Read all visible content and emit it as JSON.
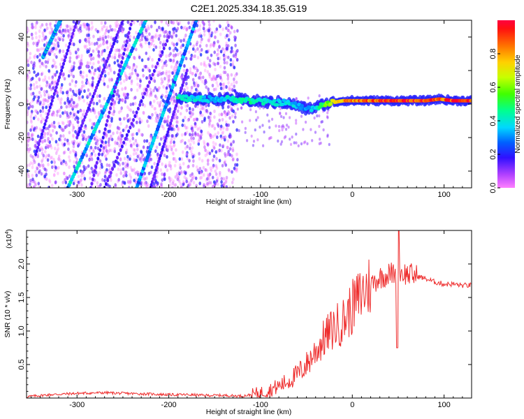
{
  "chart_data": [
    {
      "type": "heatmap",
      "title": "C2E1.2025.334.18.35.G19",
      "xlabel": "Height of straight line (km)",
      "ylabel": "Frequency (Hz)",
      "xlim": [
        -355,
        130
      ],
      "ylim": [
        -50,
        50
      ],
      "x_ticks": [
        -300,
        -200,
        -100,
        0,
        100
      ],
      "x_tick_labels": [
        "-300",
        "-200",
        "-100",
        "0",
        "100"
      ],
      "y_ticks": [
        -40,
        -20,
        0,
        20,
        40
      ],
      "y_tick_labels": [
        "-40",
        "-20",
        "0",
        "20",
        "40"
      ],
      "colorbar": {
        "label": "Normalized spectral amplitude",
        "range": [
          0,
          1
        ],
        "ticks": [
          0.0,
          0.2,
          0.4,
          0.6,
          0.8
        ],
        "tick_labels": [
          "0.0",
          "0.2",
          "0.4",
          "0.6",
          "0.8"
        ]
      },
      "noise_region_x": [
        -355,
        -125
      ],
      "carrier_trace": {
        "x": [
          -190,
          -175,
          -150,
          -130,
          -110,
          -90,
          -75,
          -60,
          -50,
          -40,
          -30,
          -20,
          -10,
          0,
          20,
          40,
          60,
          80,
          95,
          110,
          130
        ],
        "freq": [
          4,
          3,
          3,
          3,
          2,
          1,
          1,
          -1,
          -3,
          -2,
          0,
          1,
          2,
          2,
          2,
          2,
          2,
          2,
          3,
          2,
          2
        ],
        "amplitude": [
          0.45,
          0.4,
          0.35,
          0.4,
          0.45,
          0.4,
          0.4,
          0.35,
          0.3,
          0.4,
          0.55,
          0.7,
          0.8,
          0.85,
          0.9,
          0.92,
          0.95,
          0.95,
          0.9,
          0.95,
          0.95
        ]
      },
      "diagonal_streaks": [
        {
          "x_start": -310,
          "freq_start": -50,
          "x_end": -225,
          "freq_end": 50,
          "amplitude": 0.4
        },
        {
          "x_start": -235,
          "freq_start": -50,
          "x_end": -170,
          "freq_end": 50,
          "amplitude": 0.35
        },
        {
          "x_start": -337,
          "freq_start": 28,
          "x_end": -318,
          "freq_end": 50,
          "amplitude": 0.4
        }
      ]
    },
    {
      "type": "line",
      "xlabel": "Height of straight line (km)",
      "ylabel": "SNR (10 * v/v)",
      "scale_label": "(x10",
      "scale_exponent": "4",
      "xlim": [
        -355,
        130
      ],
      "ylim": [
        0,
        2.5
      ],
      "x_ticks": [
        -300,
        -200,
        -100,
        0,
        100
      ],
      "x_tick_labels": [
        "-300",
        "-200",
        "-100",
        "0",
        "100"
      ],
      "y_ticks": [
        0.5,
        1.0,
        1.5,
        2.0
      ],
      "y_tick_labels": [
        "0.5",
        "1.0",
        "1.5",
        "2.0"
      ],
      "series": [
        {
          "name": "SNR",
          "color": "#ee2c2c",
          "x": [
            -355,
            -330,
            -300,
            -270,
            -250,
            -220,
            -200,
            -180,
            -160,
            -140,
            -120,
            -110,
            -100,
            -90,
            -80,
            -70,
            -60,
            -50,
            -40,
            -30,
            -20,
            -10,
            0,
            10,
            20,
            30,
            40,
            50,
            60,
            70,
            80,
            90,
            100,
            110,
            120,
            130
          ],
          "y": [
            0.02,
            0.05,
            0.07,
            0.08,
            0.07,
            0.06,
            0.05,
            0.05,
            0.04,
            0.04,
            0.03,
            0.05,
            0.08,
            0.12,
            0.18,
            0.25,
            0.35,
            0.5,
            0.7,
            0.9,
            1.05,
            1.15,
            1.35,
            1.55,
            1.7,
            1.8,
            1.85,
            1.88,
            1.85,
            1.82,
            1.78,
            1.73,
            1.7,
            1.7,
            1.68,
            1.68
          ]
        }
      ]
    }
  ]
}
